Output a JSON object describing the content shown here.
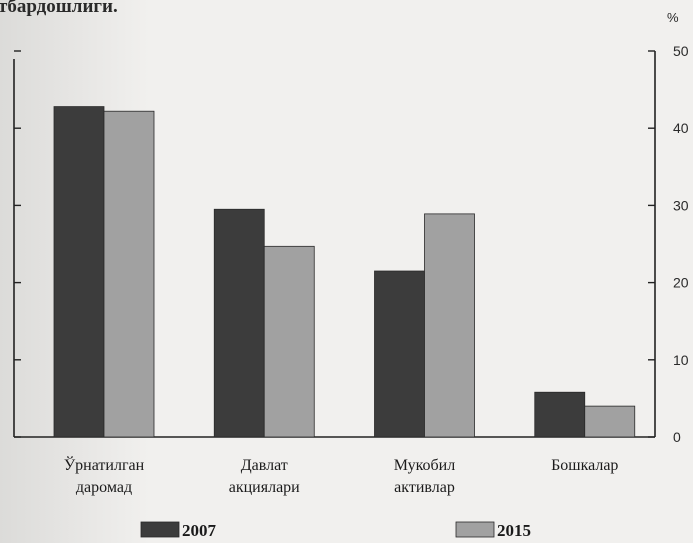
{
  "figure": {
    "caption_fragment": "тбардошлиги."
  },
  "chart_data": {
    "type": "bar",
    "unit": "%",
    "categories": [
      [
        "Ўрнатилган",
        "даромад"
      ],
      [
        "Давлат",
        "акциялари"
      ],
      [
        "Мукобил",
        "активлар"
      ],
      [
        "Бошкалар"
      ]
    ],
    "series": [
      {
        "name": "2007",
        "values": [
          42.8,
          29.5,
          21.5,
          5.8
        ],
        "color": "#3c3c3c"
      },
      {
        "name": "2015",
        "values": [
          42.2,
          24.7,
          28.9,
          4.0
        ],
        "color": "#a1a1a1"
      }
    ],
    "ylim": [
      0,
      50
    ],
    "yticks": [
      0,
      10,
      20,
      30,
      40,
      50
    ],
    "y_axis_side": "right",
    "grid": false,
    "legend_position": "bottom"
  }
}
